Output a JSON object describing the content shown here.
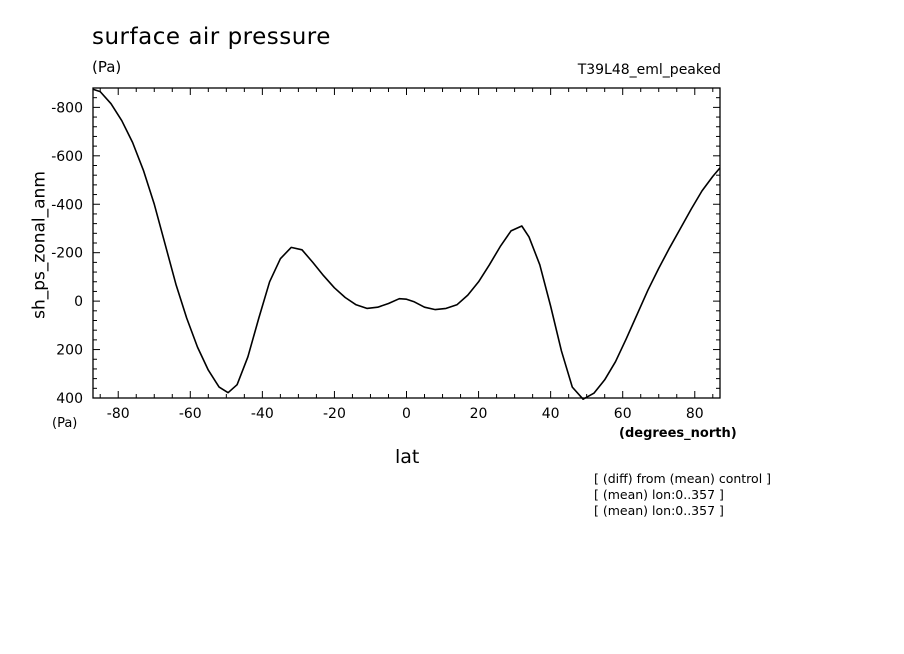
{
  "header": {
    "title": "surface air pressure",
    "units_top": "(Pa)",
    "run_label": "T39L48_eml_peaked",
    "units_bottom": "(Pa)",
    "x_units": "(degrees_north)",
    "notes": [
      "[ (diff) from (mean) control ]",
      "[ (mean) lon:0..357 ]",
      "[ (mean) lon:0..357 ]"
    ]
  },
  "chart_data": {
    "type": "line",
    "title": "surface air pressure",
    "xlabel": "lat",
    "ylabel": "sh_ps_zonal_anm",
    "xlim": [
      -87,
      87
    ],
    "ylim": [
      400,
      -880
    ],
    "y_inverted": true,
    "x_ticks": [
      -80,
      -60,
      -40,
      -20,
      0,
      20,
      40,
      60,
      80
    ],
    "x_tick_labels": [
      "-80",
      "-60",
      "-40",
      "-20",
      "0",
      "20",
      "40",
      "60",
      "80"
    ],
    "y_ticks": [
      -800,
      -600,
      -400,
      -200,
      0,
      200,
      400
    ],
    "y_tick_labels": [
      "-800",
      "-600",
      "-400",
      "-200",
      "0",
      "200",
      "400"
    ],
    "grid": false,
    "line_color": "#000000",
    "series": [
      {
        "x": [
          -87,
          -85,
          -82,
          -79,
          -76,
          -73,
          -70,
          -67,
          -64,
          -61,
          -58,
          -55,
          -52,
          -49.5,
          -47,
          -44,
          -41,
          -38,
          -35,
          -32,
          -29,
          -26,
          -23,
          -20,
          -17,
          -14,
          -11,
          -8,
          -5,
          -2,
          0,
          2,
          5,
          8,
          11,
          14,
          17,
          20,
          23,
          26,
          29,
          32,
          34,
          37,
          40,
          43,
          46,
          49,
          52,
          55,
          58,
          61,
          64,
          67,
          70,
          73,
          76,
          79,
          82,
          85,
          87
        ],
        "y": [
          -875,
          -865,
          -815,
          -745,
          -655,
          -540,
          -400,
          -235,
          -70,
          70,
          190,
          285,
          355,
          378,
          345,
          230,
          70,
          -80,
          -175,
          -222,
          -212,
          -160,
          -105,
          -55,
          -15,
          15,
          30,
          25,
          10,
          -10,
          -8,
          2,
          25,
          35,
          30,
          15,
          -25,
          -80,
          -150,
          -225,
          -290,
          -310,
          -265,
          -150,
          20,
          205,
          355,
          405,
          380,
          325,
          250,
          155,
          55,
          -45,
          -135,
          -220,
          -300,
          -380,
          -455,
          -515,
          -550
        ]
      }
    ]
  }
}
